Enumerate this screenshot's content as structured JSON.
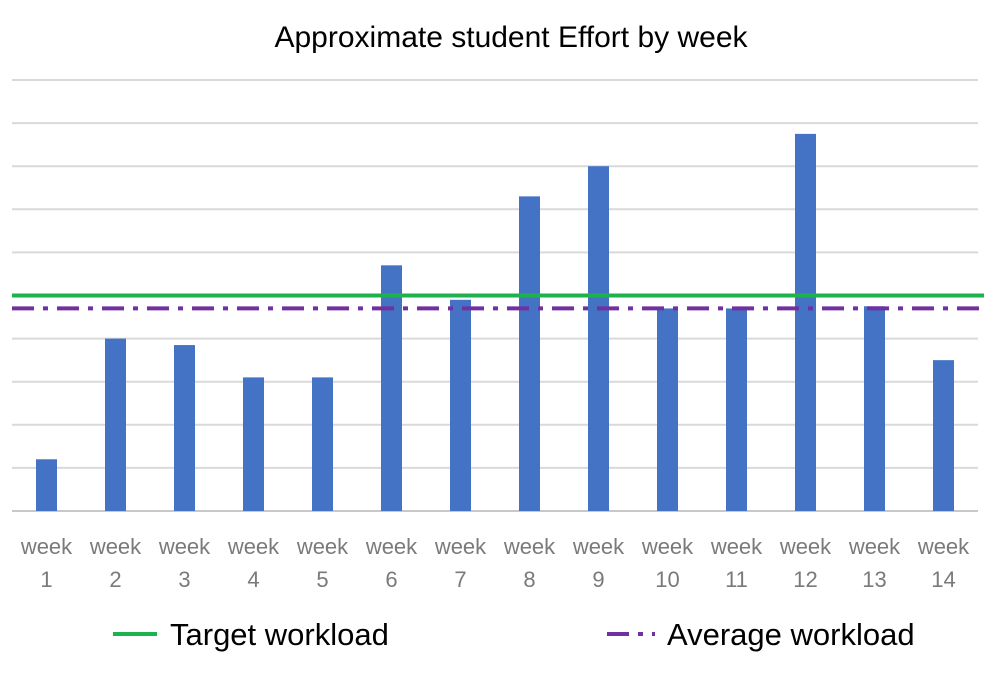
{
  "chart_data": {
    "type": "bar",
    "title": "Approximate student Effort by week",
    "categories": [
      [
        "week",
        "1"
      ],
      [
        "week",
        "2"
      ],
      [
        "week",
        "3"
      ],
      [
        "week",
        "4"
      ],
      [
        "week",
        "5"
      ],
      [
        "week",
        "6"
      ],
      [
        "week",
        "7"
      ],
      [
        "week",
        "8"
      ],
      [
        "week",
        "9"
      ],
      [
        "week",
        "10"
      ],
      [
        "week",
        "11"
      ],
      [
        "week",
        "12"
      ],
      [
        "week",
        "13"
      ],
      [
        "week",
        "14"
      ]
    ],
    "values": [
      1.2,
      4.0,
      3.85,
      3.1,
      3.1,
      5.7,
      4.9,
      7.3,
      8.0,
      4.7,
      4.7,
      8.75,
      4.75,
      3.5
    ],
    "reference_lines": [
      {
        "name": "Target workload",
        "value": 5.0,
        "color": "#1eb24f",
        "style": "solid"
      },
      {
        "name": "Average workload",
        "value": 4.7,
        "color": "#7030a0",
        "style": "dash-dot"
      }
    ],
    "bar_color": "#4472c4",
    "ylim": [
      0,
      10
    ],
    "y_gridlines": 10,
    "y_tick_labels_visible": false,
    "grid": true,
    "legend": "bottom",
    "xlabel": "",
    "ylabel": ""
  }
}
